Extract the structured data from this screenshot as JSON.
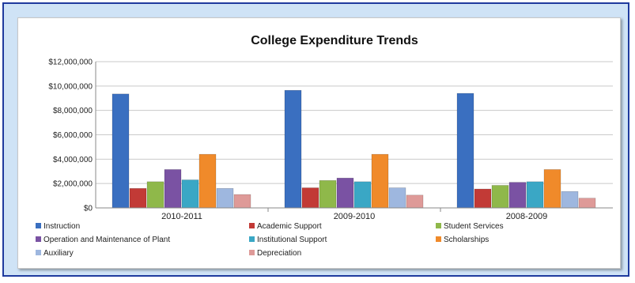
{
  "chart_data": {
    "type": "bar",
    "title": "College Expenditure Trends",
    "categories": [
      "2010-2011",
      "2009-2010",
      "2008-2009"
    ],
    "ylim": [
      0,
      12000000
    ],
    "yticks": [
      0,
      2000000,
      4000000,
      6000000,
      8000000,
      10000000,
      12000000
    ],
    "ytick_labels": [
      "$0",
      "$2,000,000",
      "$4,000,000",
      "$6,000,000",
      "$8,000,000",
      "$10,000,000",
      "$12,000,000"
    ],
    "grid": true,
    "legend_position": "bottom",
    "series": [
      {
        "name": "Instruction",
        "color": "#3a6fc0",
        "values": [
          9350000,
          9650000,
          9400000
        ]
      },
      {
        "name": "Academic Support",
        "color": "#c23a36",
        "values": [
          1600000,
          1650000,
          1550000
        ]
      },
      {
        "name": "Student Services",
        "color": "#8fb84a",
        "values": [
          2150000,
          2250000,
          1850000
        ]
      },
      {
        "name": "Operation and Maintenance of Plant",
        "color": "#7a52a3",
        "values": [
          3150000,
          2450000,
          2100000
        ]
      },
      {
        "name": "Institutional Support",
        "color": "#3aa7c5",
        "values": [
          2300000,
          2150000,
          2150000
        ]
      },
      {
        "name": "Scholarships",
        "color": "#f08a2a",
        "values": [
          4400000,
          4400000,
          3150000
        ]
      },
      {
        "name": "Auxiliary",
        "color": "#9eb7df",
        "values": [
          1600000,
          1650000,
          1350000
        ]
      },
      {
        "name": "Depreciation",
        "color": "#de9a98",
        "values": [
          1100000,
          1050000,
          800000
        ]
      }
    ]
  }
}
